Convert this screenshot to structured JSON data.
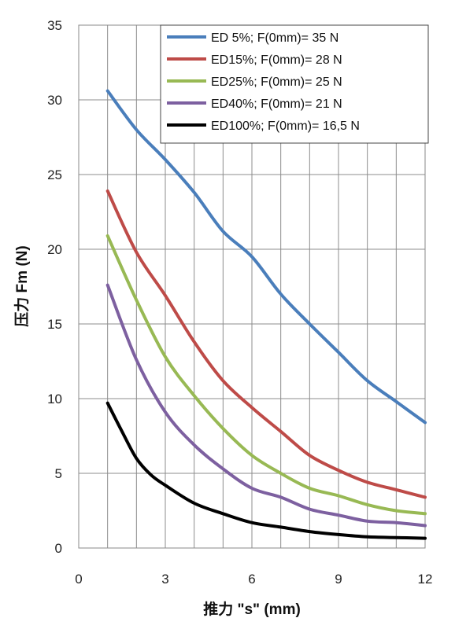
{
  "chart_data": {
    "type": "line",
    "xlabel": "推力 \"s\" (mm)",
    "ylabel": "压力  Fm (N)",
    "xlim": [
      0,
      12
    ],
    "ylim": [
      0,
      35
    ],
    "xticks": [
      0,
      3,
      6,
      9,
      12
    ],
    "yticks": [
      0,
      5,
      10,
      15,
      20,
      25,
      30,
      35
    ],
    "x_grid_step": 1,
    "grid": true,
    "legend_position": "top-right",
    "series": [
      {
        "name": "ED 5%; F(0mm)= 35 N",
        "color": "#4A7EBB",
        "x": [
          1,
          2,
          3,
          4,
          5,
          6,
          7,
          8,
          9,
          10,
          11,
          12
        ],
        "y": [
          30.6,
          28.0,
          26.0,
          23.8,
          21.2,
          19.5,
          17.0,
          15.0,
          13.1,
          11.2,
          9.8,
          8.4
        ]
      },
      {
        "name": "ED15%; F(0mm)= 28 N",
        "color": "#BE4B48",
        "x": [
          1,
          2,
          3,
          4,
          5,
          6,
          7,
          8,
          9,
          10,
          11,
          12
        ],
        "y": [
          23.9,
          19.8,
          16.9,
          13.8,
          11.2,
          9.4,
          7.8,
          6.2,
          5.2,
          4.4,
          3.9,
          3.4
        ]
      },
      {
        "name": "ED25%; F(0mm)= 25 N",
        "color": "#98B954",
        "x": [
          1,
          2,
          3,
          4,
          5,
          6,
          7,
          8,
          9,
          10,
          11,
          12
        ],
        "y": [
          20.9,
          16.6,
          12.8,
          10.2,
          8.0,
          6.2,
          5.0,
          4.0,
          3.5,
          2.9,
          2.5,
          2.3
        ]
      },
      {
        "name": "ED40%; F(0mm)= 21 N",
        "color": "#7D60A0",
        "x": [
          1,
          2,
          3,
          4,
          5,
          6,
          7,
          8,
          9,
          10,
          11,
          12
        ],
        "y": [
          17.6,
          12.6,
          9.1,
          6.9,
          5.3,
          4.0,
          3.4,
          2.6,
          2.2,
          1.8,
          1.7,
          1.5
        ]
      },
      {
        "name": "ED100%; F(0mm)= 16,5 N",
        "color": "#000000",
        "x": [
          1,
          1.5,
          2,
          2.5,
          3,
          4,
          5,
          6,
          7,
          8,
          9,
          10,
          11,
          12
        ],
        "y": [
          9.7,
          7.8,
          6.0,
          4.9,
          4.2,
          3.0,
          2.3,
          1.7,
          1.4,
          1.1,
          0.9,
          0.75,
          0.7,
          0.65
        ]
      }
    ]
  }
}
